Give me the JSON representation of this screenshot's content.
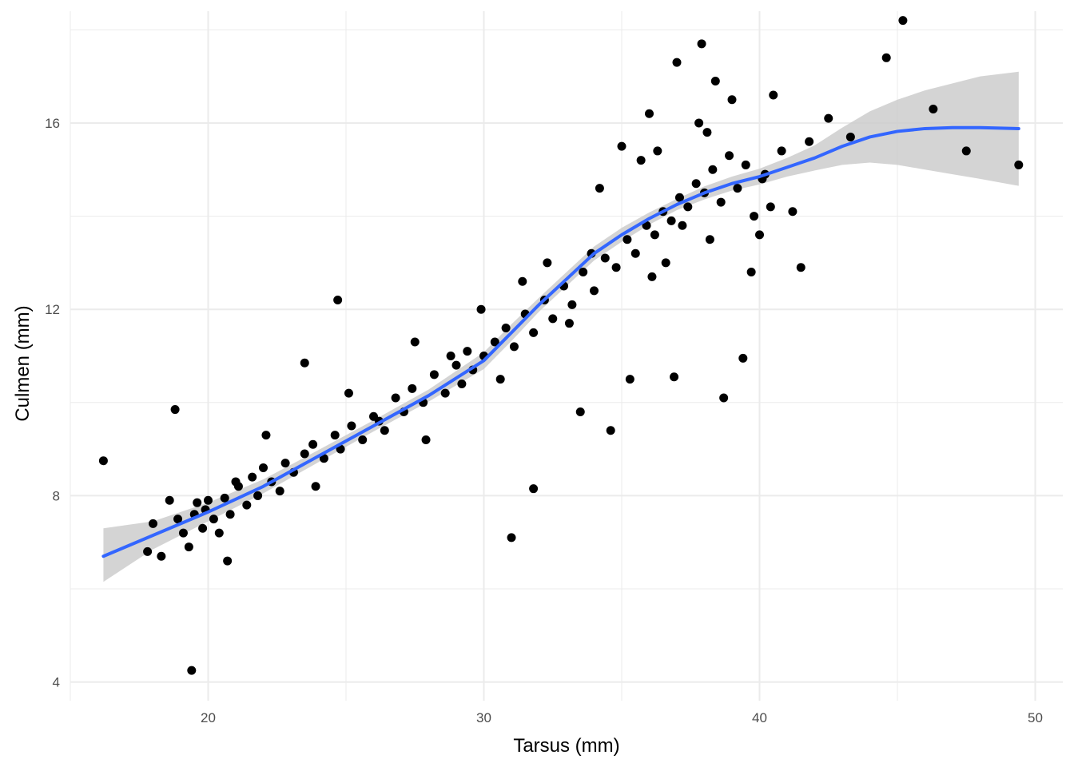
{
  "chart_data": {
    "type": "scatter",
    "title": "",
    "xlabel": "Tarsus (mm)",
    "ylabel": "Culmen (mm)",
    "xlim": [
      15,
      51
    ],
    "ylim": [
      3.6,
      18.4
    ],
    "x_ticks": [
      20,
      30,
      40,
      50
    ],
    "y_ticks": [
      4,
      8,
      12,
      16
    ],
    "x_minor": [
      15,
      25,
      35,
      45
    ],
    "y_minor": [
      6,
      10,
      14,
      18
    ],
    "grid": true,
    "legend": "none",
    "colors": {
      "points": "#000000",
      "smooth_line": "#3366FF",
      "confidence_band": "#cccccc",
      "grid": "#ebebeb"
    },
    "series": [
      {
        "kind": "points",
        "x": [
          16.2,
          17.8,
          18.0,
          18.3,
          18.6,
          18.9,
          19.1,
          19.3,
          19.5,
          19.6,
          19.8,
          19.9,
          20.0,
          20.2,
          20.4,
          20.6,
          20.8,
          21.1,
          21.4,
          21.6,
          21.8,
          22.0,
          22.3,
          22.6,
          22.8,
          23.1,
          23.5,
          23.8,
          24.2,
          24.6,
          24.8,
          25.2,
          25.6,
          26.0,
          26.4,
          26.8,
          27.1,
          27.4,
          27.8,
          28.2,
          28.6,
          29.0,
          29.2,
          29.4,
          29.6,
          30.0,
          30.4,
          30.8,
          31.1,
          31.5,
          31.8,
          32.2,
          32.5,
          32.9,
          33.2,
          33.6,
          34.0,
          34.4,
          34.8,
          35.2,
          35.5,
          35.9,
          36.2,
          36.5,
          36.8,
          37.1,
          37.4,
          37.7,
          38.0,
          38.3,
          38.6,
          38.9,
          39.2,
          39.5,
          39.8,
          40.1,
          40.4,
          40.8,
          41.2,
          41.8,
          42.5,
          43.3,
          44.6,
          45.2,
          46.3,
          47.5,
          49.4,
          18.8,
          19.4,
          24.7,
          23.5,
          31.0,
          31.8,
          36.9,
          38.7,
          39.4,
          35.3,
          33.5,
          34.6,
          36.0,
          37.9,
          38.4,
          36.3,
          37.2,
          39.0,
          40.5,
          37.8,
          35.7,
          37.0,
          38.1,
          22.1,
          25.1,
          27.5,
          29.9,
          32.3,
          34.2,
          21.0,
          26.2,
          28.8,
          31.4,
          33.9,
          35.0,
          36.6,
          39.7,
          40.0,
          41.5,
          20.7,
          23.9,
          27.9,
          30.6,
          33.1,
          36.1,
          38.2,
          40.2
        ],
        "y": [
          8.75,
          6.8,
          7.4,
          6.7,
          7.9,
          7.5,
          7.2,
          6.9,
          7.6,
          7.85,
          7.3,
          7.7,
          7.9,
          7.5,
          7.2,
          7.95,
          7.6,
          8.2,
          7.8,
          8.4,
          8.0,
          8.6,
          8.3,
          8.1,
          8.7,
          8.5,
          8.9,
          9.1,
          8.8,
          9.3,
          9.0,
          9.5,
          9.2,
          9.7,
          9.4,
          10.1,
          9.8,
          10.3,
          10.0,
          10.6,
          10.2,
          10.8,
          10.4,
          11.1,
          10.7,
          11.0,
          11.3,
          11.6,
          11.2,
          11.9,
          11.5,
          12.2,
          11.8,
          12.5,
          12.1,
          12.8,
          12.4,
          13.1,
          12.9,
          13.5,
          13.2,
          13.8,
          13.6,
          14.1,
          13.9,
          14.4,
          14.2,
          14.7,
          14.5,
          15.0,
          14.3,
          15.3,
          14.6,
          15.1,
          14.0,
          14.8,
          14.2,
          15.4,
          14.1,
          15.6,
          16.1,
          15.7,
          17.4,
          18.2,
          16.3,
          15.4,
          15.1,
          9.85,
          4.25,
          12.2,
          10.85,
          7.1,
          8.15,
          10.55,
          10.1,
          10.95,
          10.5,
          9.8,
          9.4,
          16.2,
          17.7,
          16.9,
          15.4,
          13.8,
          16.5,
          16.6,
          16.0,
          15.2,
          17.3,
          15.8,
          9.3,
          10.2,
          11.3,
          12.0,
          13.0,
          14.6,
          8.3,
          9.6,
          11.0,
          12.6,
          13.2,
          15.5,
          13.0,
          12.8,
          13.6,
          12.9,
          6.6,
          8.2,
          9.2,
          10.5,
          11.7,
          12.7,
          13.5,
          14.9
        ]
      },
      {
        "kind": "smooth",
        "x": [
          16.2,
          18,
          20,
          22,
          24,
          26,
          28,
          30,
          31,
          32,
          33,
          34,
          35,
          36,
          37,
          38,
          39,
          40,
          41,
          42,
          43,
          44,
          45,
          46,
          47,
          48,
          49.4
        ],
        "y": [
          6.7,
          7.15,
          7.65,
          8.2,
          8.85,
          9.5,
          10.15,
          10.9,
          11.5,
          12.1,
          12.65,
          13.2,
          13.6,
          13.95,
          14.25,
          14.5,
          14.7,
          14.85,
          15.05,
          15.25,
          15.5,
          15.7,
          15.82,
          15.88,
          15.9,
          15.9,
          15.88
        ],
        "lower": [
          6.15,
          6.85,
          7.45,
          8.05,
          8.72,
          9.38,
          10.02,
          10.72,
          11.32,
          11.95,
          12.5,
          13.05,
          13.45,
          13.82,
          14.13,
          14.36,
          14.55,
          14.68,
          14.85,
          14.98,
          15.1,
          15.15,
          15.1,
          15.0,
          14.9,
          14.8,
          14.65
        ],
        "upper": [
          7.3,
          7.45,
          7.85,
          8.35,
          8.98,
          9.62,
          10.28,
          11.08,
          11.68,
          12.25,
          12.8,
          13.35,
          13.75,
          14.08,
          14.37,
          14.64,
          14.85,
          15.02,
          15.25,
          15.52,
          15.9,
          16.25,
          16.5,
          16.7,
          16.85,
          17.0,
          17.1
        ]
      }
    ]
  }
}
